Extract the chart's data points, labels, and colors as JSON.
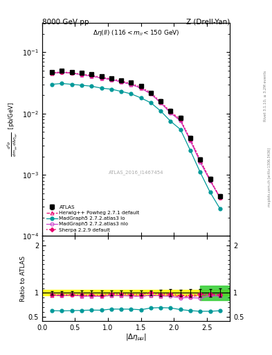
{
  "title_left": "8000 GeV pp",
  "title_right": "Z (Drell-Yan)",
  "annotation": "Δη(ll) (116 < m_{ll} < 150 GeV)",
  "watermark": "ATLAS_2016_I1467454",
  "right_label1": "Rivet 3.1.10, ≥ 3.2M events",
  "right_label2": "mcplots.cern.ch [arXiv:1306.3436]",
  "x_atlas": [
    0.15,
    0.3,
    0.45,
    0.6,
    0.75,
    0.9,
    1.05,
    1.2,
    1.35,
    1.5,
    1.65,
    1.8,
    1.95,
    2.1,
    2.25,
    2.4,
    2.55,
    2.7
  ],
  "y_atlas": [
    0.048,
    0.05,
    0.048,
    0.046,
    0.044,
    0.041,
    0.038,
    0.035,
    0.032,
    0.028,
    0.022,
    0.016,
    0.011,
    0.0085,
    0.004,
    0.0018,
    0.00085,
    0.00045
  ],
  "yerr_atlas": [
    0.002,
    0.002,
    0.002,
    0.002,
    0.002,
    0.002,
    0.002,
    0.0015,
    0.0015,
    0.0015,
    0.001,
    0.001,
    0.0008,
    0.0006,
    0.0003,
    0.00015,
    7e-05,
    4e-05
  ],
  "x_herwig": [
    0.15,
    0.3,
    0.45,
    0.6,
    0.75,
    0.9,
    1.05,
    1.2,
    1.35,
    1.5,
    1.65,
    1.8,
    1.95,
    2.1,
    2.25,
    2.4,
    2.55,
    2.7
  ],
  "y_herwig": [
    0.0455,
    0.047,
    0.046,
    0.043,
    0.041,
    0.038,
    0.036,
    0.033,
    0.03,
    0.026,
    0.021,
    0.015,
    0.0105,
    0.0078,
    0.0037,
    0.0017,
    0.00082,
    0.00043
  ],
  "x_mg5lo": [
    0.15,
    0.3,
    0.45,
    0.6,
    0.75,
    0.9,
    1.05,
    1.2,
    1.35,
    1.5,
    1.65,
    1.8,
    1.95,
    2.1,
    2.25,
    2.4,
    2.55,
    2.7
  ],
  "y_mg5lo": [
    0.03,
    0.031,
    0.03,
    0.029,
    0.028,
    0.026,
    0.025,
    0.023,
    0.021,
    0.018,
    0.015,
    0.011,
    0.0075,
    0.0055,
    0.0025,
    0.0011,
    0.00052,
    0.00028
  ],
  "x_mg5nlo": [
    0.15,
    0.3,
    0.45,
    0.6,
    0.75,
    0.9,
    1.05,
    1.2,
    1.35,
    1.5,
    1.65,
    1.8,
    1.95,
    2.1,
    2.25,
    2.4,
    2.55,
    2.7
  ],
  "y_mg5nlo": [
    0.046,
    0.047,
    0.046,
    0.043,
    0.041,
    0.038,
    0.036,
    0.033,
    0.03,
    0.026,
    0.021,
    0.015,
    0.0102,
    0.0076,
    0.0036,
    0.0016,
    0.0008,
    0.00042
  ],
  "x_sherpa": [
    0.15,
    0.3,
    0.45,
    0.6,
    0.75,
    0.9,
    1.05,
    1.2,
    1.35,
    1.5,
    1.65,
    1.8,
    1.95,
    2.1,
    2.25,
    2.4,
    2.55,
    2.7
  ],
  "y_sherpa": [
    0.046,
    0.048,
    0.046,
    0.044,
    0.042,
    0.039,
    0.037,
    0.034,
    0.031,
    0.027,
    0.022,
    0.0155,
    0.0108,
    0.008,
    0.0038,
    0.00175,
    0.00083,
    0.00043
  ],
  "ratio_herwig": [
    0.948,
    0.94,
    0.958,
    0.935,
    0.932,
    0.927,
    0.947,
    0.943,
    0.938,
    0.929,
    0.952,
    0.938,
    0.955,
    0.918,
    0.925,
    0.944,
    0.965,
    0.956
  ],
  "ratio_mg5lo": [
    0.625,
    0.62,
    0.625,
    0.63,
    0.636,
    0.634,
    0.658,
    0.657,
    0.656,
    0.643,
    0.682,
    0.688,
    0.682,
    0.647,
    0.625,
    0.611,
    0.612,
    0.622
  ],
  "ratio_mg5nlo": [
    0.958,
    0.94,
    0.958,
    0.935,
    0.932,
    0.927,
    0.947,
    0.943,
    0.938,
    0.929,
    0.952,
    0.938,
    0.927,
    0.894,
    0.9,
    0.889,
    0.941,
    0.933
  ],
  "ratio_sherpa": [
    0.958,
    0.96,
    0.958,
    0.957,
    0.955,
    0.951,
    0.974,
    0.971,
    0.969,
    0.964,
    1.0,
    0.969,
    0.982,
    0.941,
    0.95,
    0.972,
    0.976,
    0.956
  ],
  "color_atlas": "#000000",
  "color_herwig": "#e8006f",
  "color_mg5lo": "#009999",
  "color_mg5nlo": "#cc44cc",
  "color_sherpa": "#e8006f",
  "band_yellow_lo": 0.94,
  "band_yellow_hi": 1.06,
  "band_green_xlo": 2.4,
  "band_green_xhi": 2.85,
  "band_green_ylo": 0.85,
  "band_green_yhi": 1.15,
  "ylim_main": [
    0.0001,
    0.3
  ],
  "ylim_ratio": [
    0.4,
    2.2
  ],
  "xlim": [
    0.0,
    2.85
  ]
}
